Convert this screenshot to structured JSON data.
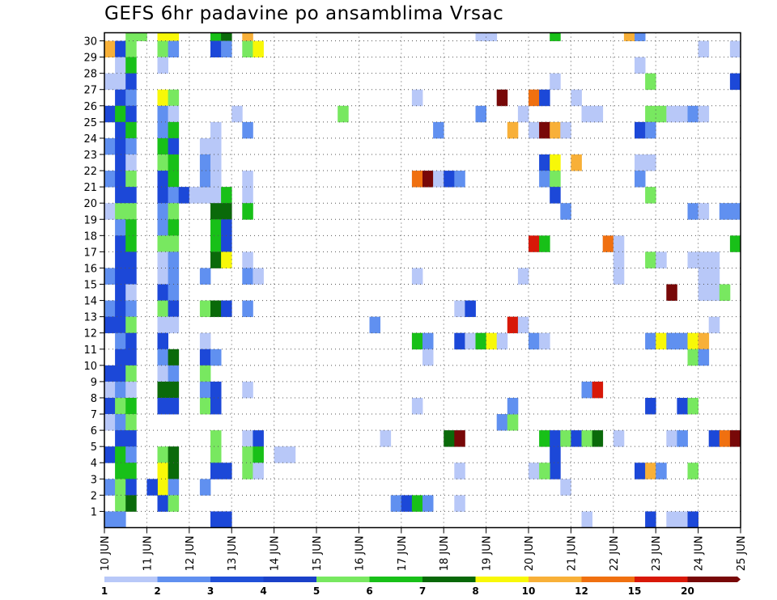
{
  "chart_data": {
    "type": "heatmap",
    "title": "GEFS 6hr padavine po ansamblima Vrsac",
    "xlabel": "",
    "ylabel": "",
    "x_tick_labels": [
      "10 JUN",
      "11 JUN",
      "12 JUN",
      "13 JUN",
      "14 JUN",
      "15 JUN",
      "16 JUN",
      "17 JUN",
      "18 JUN",
      "19 JUN",
      "20 JUN",
      "21 JUN",
      "22 JUN",
      "23 JUN",
      "24 JUN",
      "25 JUN"
    ],
    "y_tick_labels": [
      "1",
      "2",
      "3",
      "4",
      "5",
      "6",
      "7",
      "8",
      "9",
      "10",
      "11",
      "12",
      "13",
      "14",
      "15",
      "16",
      "17",
      "18",
      "19",
      "20",
      "21",
      "22",
      "23",
      "24",
      "25",
      "26",
      "27",
      "28",
      "29",
      "30"
    ],
    "y_range": [
      0,
      30
    ],
    "x_steps_per_day": 4,
    "x_step_count": 60,
    "grid": true,
    "legend": {
      "placement": "bottom",
      "labels": [
        "1",
        "2",
        "3",
        "4",
        "5",
        "6",
        "7",
        "8",
        "10",
        "12",
        "15",
        "20"
      ],
      "colors": [
        "#b8c8f8",
        "#6090f0",
        "#2050d8",
        "#1a40c8",
        "#78e860",
        "#18c018",
        "#086808",
        "#f8f808",
        "#f8b038",
        "#f07010",
        "#d81808",
        "#780808"
      ]
    },
    "palette": {
      "lb": "#b8c8f8",
      "mb": "#6090f0",
      "db": "#1c48d8",
      "lg": "#78e860",
      "mg": "#18c018",
      "dg": "#0a6a0a",
      "ye": "#f8f808",
      "lo": "#f8b038",
      "or": "#f07010",
      "rd": "#d81808",
      "dr": "#780808"
    },
    "cells": [
      [
        0,
        29,
        "lo"
      ],
      [
        1,
        29,
        "db"
      ],
      [
        2,
        29,
        "lg"
      ],
      [
        2,
        30,
        "lg"
      ],
      [
        3,
        30,
        "lg"
      ],
      [
        1,
        28,
        "lb"
      ],
      [
        1,
        27,
        "lb"
      ],
      [
        2,
        28,
        "mg"
      ],
      [
        2,
        27,
        "db"
      ],
      [
        0,
        27,
        "lb"
      ],
      [
        1,
        26,
        "db"
      ],
      [
        2,
        26,
        "mb"
      ],
      [
        0,
        25,
        "db"
      ],
      [
        1,
        25,
        "mg"
      ],
      [
        2,
        25,
        "db"
      ],
      [
        1,
        24,
        "db"
      ],
      [
        2,
        24,
        "mg"
      ],
      [
        0,
        23,
        "mb"
      ],
      [
        1,
        23,
        "db"
      ],
      [
        2,
        23,
        "mb"
      ],
      [
        1,
        22,
        "db"
      ],
      [
        2,
        22,
        "lb"
      ],
      [
        0,
        21,
        "mb"
      ],
      [
        1,
        21,
        "db"
      ],
      [
        2,
        21,
        "lg"
      ],
      [
        1,
        20,
        "db"
      ],
      [
        2,
        20,
        "db"
      ],
      [
        0,
        19,
        "lb"
      ],
      [
        1,
        19,
        "lg"
      ],
      [
        2,
        19,
        "lg"
      ],
      [
        1,
        18,
        "mb"
      ],
      [
        2,
        18,
        "mg"
      ],
      [
        1,
        17,
        "db"
      ],
      [
        2,
        17,
        "mg"
      ],
      [
        1,
        16,
        "db"
      ],
      [
        2,
        16,
        "db"
      ],
      [
        0,
        15,
        "mb"
      ],
      [
        1,
        15,
        "db"
      ],
      [
        2,
        15,
        "db"
      ],
      [
        1,
        14,
        "db"
      ],
      [
        2,
        14,
        "lb"
      ],
      [
        0,
        13,
        "mb"
      ],
      [
        1,
        13,
        "db"
      ],
      [
        2,
        13,
        "mb"
      ],
      [
        0,
        12,
        "db"
      ],
      [
        1,
        12,
        "db"
      ],
      [
        2,
        12,
        "lg"
      ],
      [
        1,
        11,
        "mb"
      ],
      [
        2,
        11,
        "db"
      ],
      [
        1,
        10,
        "db"
      ],
      [
        2,
        10,
        "db"
      ],
      [
        0,
        9,
        "db"
      ],
      [
        1,
        9,
        "db"
      ],
      [
        2,
        9,
        "lg"
      ],
      [
        0,
        8,
        "lb"
      ],
      [
        1,
        8,
        "mb"
      ],
      [
        2,
        8,
        "lb"
      ],
      [
        0,
        7,
        "db"
      ],
      [
        1,
        7,
        "lg"
      ],
      [
        2,
        7,
        "mg"
      ],
      [
        0,
        6,
        "lb"
      ],
      [
        1,
        6,
        "mb"
      ],
      [
        2,
        6,
        "lg"
      ],
      [
        1,
        5,
        "db"
      ],
      [
        2,
        5,
        "db"
      ],
      [
        0,
        4,
        "db"
      ],
      [
        1,
        4,
        "mg"
      ],
      [
        2,
        4,
        "mb"
      ],
      [
        1,
        3,
        "mg"
      ],
      [
        2,
        3,
        "mg"
      ],
      [
        0,
        2,
        "mb"
      ],
      [
        1,
        2,
        "lg"
      ],
      [
        2,
        2,
        "db"
      ],
      [
        1,
        1,
        "lg"
      ],
      [
        2,
        1,
        "dg"
      ],
      [
        0,
        0,
        "mb"
      ],
      [
        1,
        0,
        "mb"
      ],
      [
        5,
        30,
        "ye"
      ],
      [
        6,
        30,
        "ye"
      ],
      [
        5,
        29,
        "lg"
      ],
      [
        6,
        29,
        "mb"
      ],
      [
        5,
        28,
        "lb"
      ],
      [
        5,
        26,
        "ye"
      ],
      [
        6,
        26,
        "lg"
      ],
      [
        5,
        25,
        "mb"
      ],
      [
        6,
        25,
        "lb"
      ],
      [
        5,
        24,
        "mb"
      ],
      [
        6,
        24,
        "mg"
      ],
      [
        5,
        23,
        "mg"
      ],
      [
        6,
        23,
        "db"
      ],
      [
        5,
        22,
        "lg"
      ],
      [
        6,
        22,
        "mg"
      ],
      [
        5,
        21,
        "db"
      ],
      [
        6,
        21,
        "mg"
      ],
      [
        5,
        20,
        "db"
      ],
      [
        6,
        20,
        "mb"
      ],
      [
        7,
        20,
        "db"
      ],
      [
        5,
        19,
        "mb"
      ],
      [
        6,
        19,
        "lg"
      ],
      [
        5,
        18,
        "mb"
      ],
      [
        6,
        18,
        "mg"
      ],
      [
        5,
        17,
        "lg"
      ],
      [
        6,
        17,
        "lg"
      ],
      [
        5,
        16,
        "lb"
      ],
      [
        6,
        16,
        "mb"
      ],
      [
        5,
        15,
        "lb"
      ],
      [
        6,
        15,
        "mb"
      ],
      [
        5,
        14,
        "db"
      ],
      [
        6,
        14,
        "mb"
      ],
      [
        5,
        13,
        "lg"
      ],
      [
        6,
        13,
        "db"
      ],
      [
        5,
        12,
        "lb"
      ],
      [
        6,
        12,
        "lb"
      ],
      [
        5,
        11,
        "db"
      ],
      [
        5,
        10,
        "mb"
      ],
      [
        6,
        10,
        "dg"
      ],
      [
        5,
        9,
        "lb"
      ],
      [
        6,
        9,
        "mb"
      ],
      [
        5,
        8,
        "dg"
      ],
      [
        6,
        8,
        "dg"
      ],
      [
        5,
        7,
        "db"
      ],
      [
        6,
        7,
        "db"
      ],
      [
        5,
        4,
        "lg"
      ],
      [
        6,
        4,
        "dg"
      ],
      [
        5,
        3,
        "ye"
      ],
      [
        6,
        3,
        "dg"
      ],
      [
        5,
        2,
        "ye"
      ],
      [
        6,
        2,
        "mb"
      ],
      [
        4,
        2,
        "db"
      ],
      [
        5,
        1,
        "db"
      ],
      [
        6,
        1,
        "lg"
      ],
      [
        8,
        20,
        "lb"
      ],
      [
        9,
        20,
        "lb"
      ],
      [
        10,
        20,
        "lb"
      ],
      [
        11,
        20,
        "mg"
      ],
      [
        10,
        30,
        "mg"
      ],
      [
        11,
        30,
        "dg"
      ],
      [
        10,
        29,
        "db"
      ],
      [
        11,
        29,
        "mb"
      ],
      [
        10,
        24,
        "lb"
      ],
      [
        9,
        23,
        "lb"
      ],
      [
        10,
        23,
        "lb"
      ],
      [
        9,
        22,
        "mb"
      ],
      [
        10,
        22,
        "lb"
      ],
      [
        9,
        21,
        "mb"
      ],
      [
        10,
        21,
        "lb"
      ],
      [
        10,
        19,
        "dg"
      ],
      [
        11,
        19,
        "dg"
      ],
      [
        10,
        18,
        "mg"
      ],
      [
        11,
        18,
        "db"
      ],
      [
        10,
        17,
        "mg"
      ],
      [
        11,
        17,
        "db"
      ],
      [
        10,
        16,
        "dg"
      ],
      [
        11,
        16,
        "ye"
      ],
      [
        9,
        15,
        "mb"
      ],
      [
        9,
        13,
        "lg"
      ],
      [
        10,
        13,
        "dg"
      ],
      [
        11,
        13,
        "db"
      ],
      [
        9,
        11,
        "lb"
      ],
      [
        9,
        10,
        "db"
      ],
      [
        10,
        10,
        "mb"
      ],
      [
        9,
        9,
        "lg"
      ],
      [
        9,
        8,
        "mb"
      ],
      [
        10,
        8,
        "db"
      ],
      [
        9,
        7,
        "lg"
      ],
      [
        10,
        7,
        "db"
      ],
      [
        10,
        5,
        "lg"
      ],
      [
        10,
        4,
        "lg"
      ],
      [
        10,
        3,
        "db"
      ],
      [
        11,
        3,
        "db"
      ],
      [
        9,
        2,
        "mb"
      ],
      [
        10,
        0,
        "db"
      ],
      [
        11,
        0,
        "db"
      ],
      [
        12,
        25,
        "lb"
      ],
      [
        13,
        30,
        "lo"
      ],
      [
        13,
        29,
        "lg"
      ],
      [
        14,
        29,
        "ye"
      ],
      [
        13,
        24,
        "mb"
      ],
      [
        13,
        21,
        "lb"
      ],
      [
        13,
        20,
        "lb"
      ],
      [
        13,
        19,
        "mg"
      ],
      [
        13,
        16,
        "lb"
      ],
      [
        13,
        15,
        "mb"
      ],
      [
        14,
        15,
        "lb"
      ],
      [
        13,
        13,
        "mb"
      ],
      [
        13,
        8,
        "lb"
      ],
      [
        13,
        5,
        "lb"
      ],
      [
        14,
        5,
        "db"
      ],
      [
        13,
        4,
        "lg"
      ],
      [
        14,
        4,
        "mg"
      ],
      [
        13,
        3,
        "lg"
      ],
      [
        14,
        3,
        "lb"
      ],
      [
        16,
        4,
        "lb"
      ],
      [
        17,
        4,
        "lb"
      ],
      [
        22,
        25,
        "lg"
      ],
      [
        25,
        12,
        "mb"
      ],
      [
        26,
        5,
        "lb"
      ],
      [
        27,
        1,
        "mb"
      ],
      [
        28,
        1,
        "db"
      ],
      [
        29,
        1,
        "mg"
      ],
      [
        30,
        1,
        "mb"
      ],
      [
        29,
        26,
        "lb"
      ],
      [
        29,
        21,
        "or"
      ],
      [
        30,
        21,
        "dr"
      ],
      [
        31,
        21,
        "lb"
      ],
      [
        32,
        21,
        "db"
      ],
      [
        33,
        21,
        "mb"
      ],
      [
        29,
        15,
        "lb"
      ],
      [
        29,
        11,
        "mg"
      ],
      [
        30,
        11,
        "mb"
      ],
      [
        30,
        10,
        "lb"
      ],
      [
        29,
        7,
        "lb"
      ],
      [
        31,
        24,
        "mb"
      ],
      [
        33,
        13,
        "lb"
      ],
      [
        34,
        13,
        "db"
      ],
      [
        33,
        11,
        "db"
      ],
      [
        34,
        11,
        "lb"
      ],
      [
        32,
        5,
        "dg"
      ],
      [
        33,
        5,
        "dr"
      ],
      [
        33,
        3,
        "lb"
      ],
      [
        33,
        1,
        "lb"
      ],
      [
        35,
        30,
        "lb"
      ],
      [
        36,
        30,
        "lb"
      ],
      [
        35,
        25,
        "mb"
      ],
      [
        35,
        11,
        "mg"
      ],
      [
        36,
        11,
        "ye"
      ],
      [
        37,
        26,
        "dr"
      ],
      [
        37,
        11,
        "lb"
      ],
      [
        37,
        6,
        "mb"
      ],
      [
        38,
        6,
        "lg"
      ],
      [
        38,
        24,
        "lo"
      ],
      [
        38,
        12,
        "rd"
      ],
      [
        38,
        7,
        "mb"
      ],
      [
        39,
        25,
        "lb"
      ],
      [
        39,
        15,
        "lb"
      ],
      [
        39,
        12,
        "lb"
      ],
      [
        40,
        26,
        "or"
      ],
      [
        41,
        26,
        "db"
      ],
      [
        40,
        24,
        "lb"
      ],
      [
        40,
        11,
        "mb"
      ],
      [
        41,
        11,
        "lb"
      ],
      [
        41,
        24,
        "dr"
      ],
      [
        42,
        24,
        "lo"
      ],
      [
        43,
        24,
        "lb"
      ],
      [
        42,
        30,
        "mg"
      ],
      [
        42,
        27,
        "lb"
      ],
      [
        41,
        22,
        "db"
      ],
      [
        42,
        22,
        "ye"
      ],
      [
        41,
        21,
        "mb"
      ],
      [
        42,
        21,
        "lg"
      ],
      [
        42,
        20,
        "db"
      ],
      [
        43,
        19,
        "mb"
      ],
      [
        40,
        17,
        "rd"
      ],
      [
        41,
        17,
        "mg"
      ],
      [
        43,
        2,
        "lb"
      ],
      [
        41,
        5,
        "mg"
      ],
      [
        42,
        5,
        "db"
      ],
      [
        43,
        5,
        "lg"
      ],
      [
        44,
        5,
        "db"
      ],
      [
        45,
        5,
        "lg"
      ],
      [
        46,
        5,
        "dg"
      ],
      [
        42,
        4,
        "db"
      ],
      [
        42,
        3,
        "db"
      ],
      [
        40,
        3,
        "lb"
      ],
      [
        41,
        3,
        "lg"
      ],
      [
        44,
        26,
        "lb"
      ],
      [
        45,
        25,
        "lb"
      ],
      [
        46,
        25,
        "lb"
      ],
      [
        44,
        22,
        "lo"
      ],
      [
        45,
        8,
        "mb"
      ],
      [
        46,
        8,
        "rd"
      ],
      [
        45,
        0,
        "lb"
      ],
      [
        47,
        17,
        "or"
      ],
      [
        48,
        17,
        "lb"
      ],
      [
        48,
        16,
        "lb"
      ],
      [
        48,
        15,
        "lb"
      ],
      [
        48,
        5,
        "lb"
      ],
      [
        49,
        30,
        "lo"
      ],
      [
        50,
        30,
        "mb"
      ],
      [
        50,
        28,
        "lb"
      ],
      [
        51,
        27,
        "lg"
      ],
      [
        51,
        25,
        "lg"
      ],
      [
        52,
        25,
        "lg"
      ],
      [
        53,
        25,
        "lb"
      ],
      [
        54,
        25,
        "lb"
      ],
      [
        50,
        24,
        "db"
      ],
      [
        51,
        24,
        "mb"
      ],
      [
        50,
        22,
        "lb"
      ],
      [
        51,
        22,
        "lb"
      ],
      [
        50,
        21,
        "mb"
      ],
      [
        51,
        20,
        "lg"
      ],
      [
        51,
        16,
        "lg"
      ],
      [
        52,
        16,
        "lb"
      ],
      [
        51,
        11,
        "mb"
      ],
      [
        52,
        11,
        "ye"
      ],
      [
        53,
        11,
        "mb"
      ],
      [
        54,
        11,
        "mb"
      ],
      [
        55,
        11,
        "ye"
      ],
      [
        56,
        11,
        "lo"
      ],
      [
        51,
        7,
        "db"
      ],
      [
        54,
        7,
        "db"
      ],
      [
        55,
        7,
        "lg"
      ],
      [
        50,
        3,
        "db"
      ],
      [
        51,
        3,
        "lo"
      ],
      [
        52,
        3,
        "mb"
      ],
      [
        55,
        3,
        "lg"
      ],
      [
        53,
        5,
        "lb"
      ],
      [
        54,
        5,
        "mb"
      ],
      [
        55,
        10,
        "lg"
      ],
      [
        56,
        10,
        "mb"
      ],
      [
        51,
        0,
        "db"
      ],
      [
        53,
        0,
        "lb"
      ],
      [
        54,
        0,
        "lb"
      ],
      [
        55,
        0,
        "db"
      ],
      [
        53,
        14,
        "dr"
      ],
      [
        55,
        25,
        "mb"
      ],
      [
        56,
        25,
        "lb"
      ],
      [
        55,
        19,
        "mb"
      ],
      [
        56,
        19,
        "lb"
      ],
      [
        56,
        29,
        "lb"
      ],
      [
        55,
        16,
        "lb"
      ],
      [
        56,
        16,
        "lb"
      ],
      [
        57,
        16,
        "lb"
      ],
      [
        56,
        15,
        "lb"
      ],
      [
        57,
        15,
        "lb"
      ],
      [
        56,
        14,
        "lb"
      ],
      [
        57,
        14,
        "lb"
      ],
      [
        58,
        14,
        "lg"
      ],
      [
        57,
        12,
        "lb"
      ],
      [
        58,
        19,
        "mb"
      ],
      [
        59,
        19,
        "mb"
      ],
      [
        59,
        29,
        "lb"
      ],
      [
        59,
        27,
        "db"
      ],
      [
        59,
        17,
        "mg"
      ],
      [
        57,
        5,
        "db"
      ],
      [
        58,
        5,
        "or"
      ],
      [
        59,
        5,
        "dr"
      ]
    ]
  }
}
